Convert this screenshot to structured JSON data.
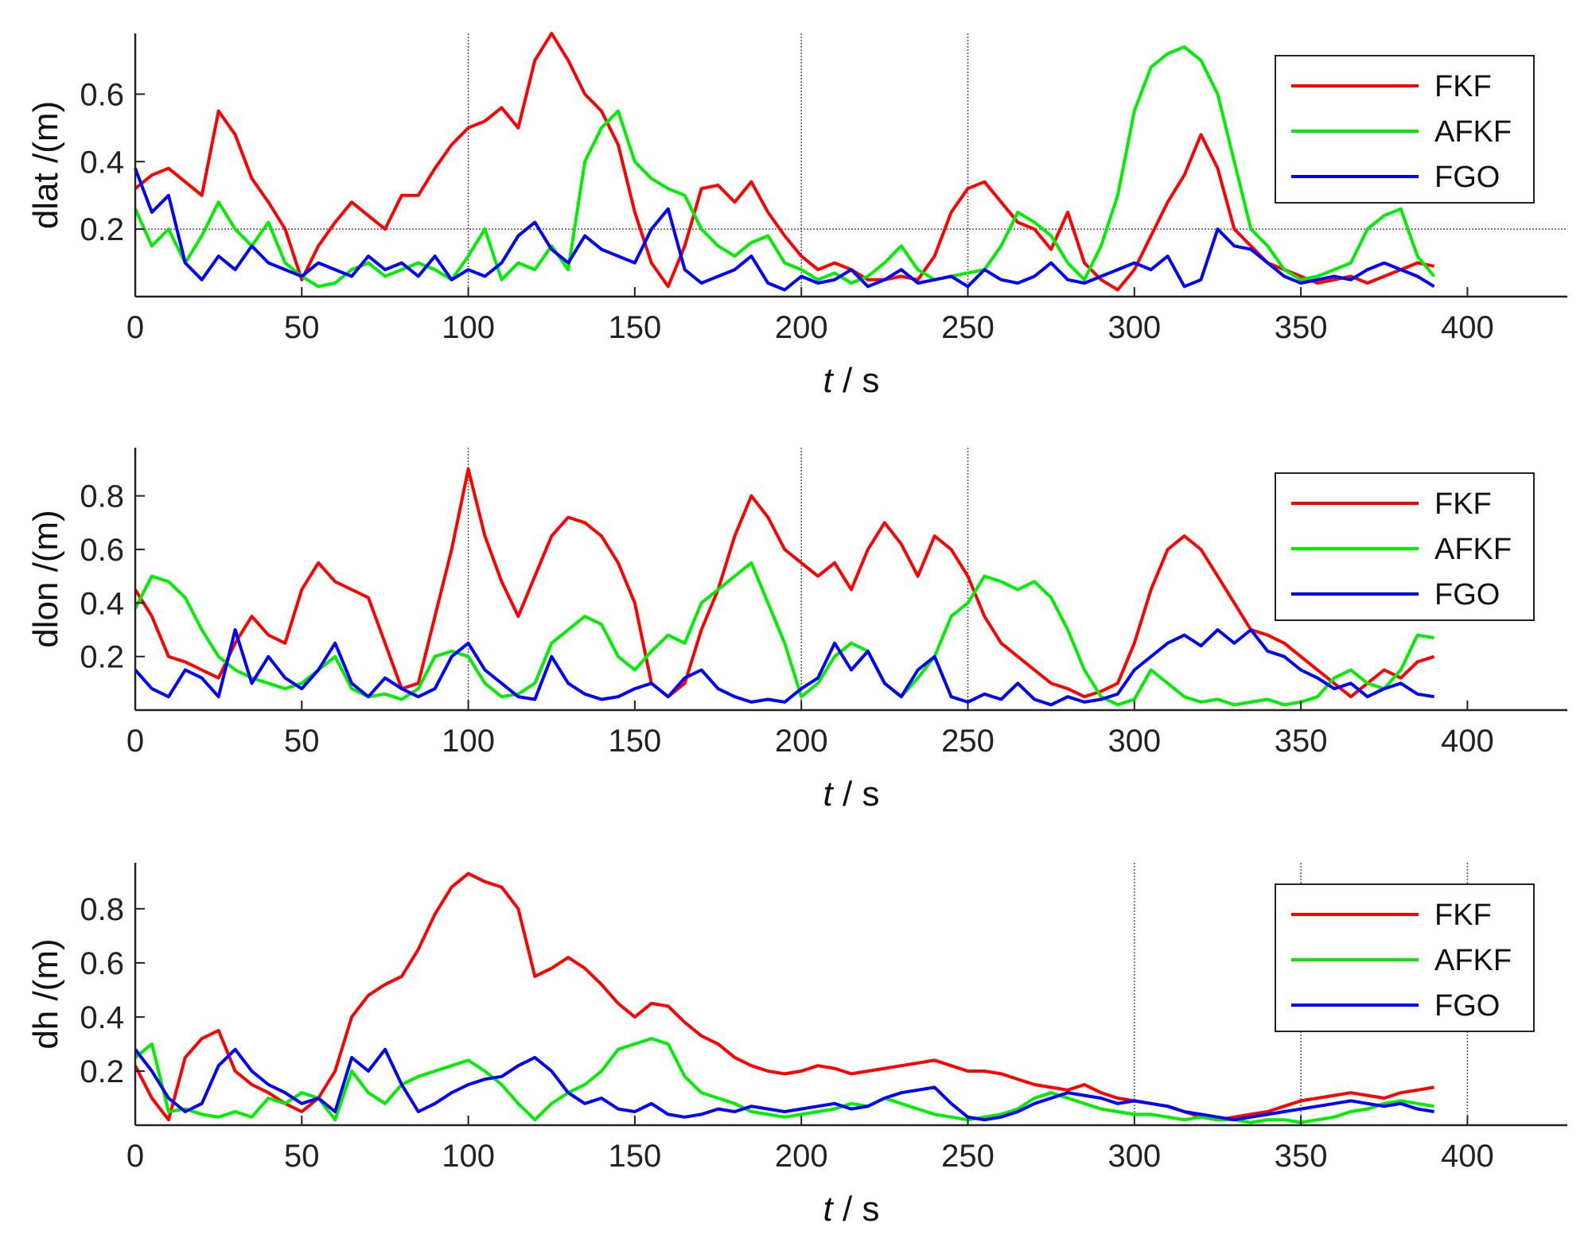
{
  "chart_data": [
    {
      "type": "line",
      "name": "dlat",
      "xlabel_italic": "t",
      "xlabel_unit": "/ s",
      "ylabel": "dlat /(m)",
      "xlim": [
        0,
        430
      ],
      "ylim": [
        0,
        0.78
      ],
      "xticks": [
        "0",
        "50",
        "100",
        "150",
        "200",
        "250",
        "300",
        "350",
        "400"
      ],
      "yticks": [
        "0.2",
        "0.4",
        "0.6"
      ],
      "yticks_values": [
        0.2,
        0.4,
        0.6
      ],
      "vlines": [
        100,
        200,
        250
      ],
      "hline": 0.2,
      "x": [
        0,
        5,
        10,
        15,
        20,
        25,
        30,
        35,
        40,
        45,
        50,
        55,
        60,
        65,
        70,
        75,
        80,
        85,
        90,
        95,
        100,
        105,
        110,
        115,
        120,
        125,
        130,
        135,
        140,
        145,
        150,
        155,
        160,
        165,
        170,
        175,
        180,
        185,
        190,
        195,
        200,
        205,
        210,
        215,
        220,
        225,
        230,
        235,
        240,
        245,
        250,
        255,
        260,
        265,
        270,
        275,
        280,
        285,
        290,
        295,
        300,
        305,
        310,
        315,
        320,
        325,
        330,
        335,
        340,
        345,
        350,
        355,
        360,
        365,
        370,
        375,
        380,
        385,
        390
      ],
      "series": [
        {
          "name": "FKF",
          "color": "#ff0000",
          "values": [
            0.32,
            0.36,
            0.38,
            0.34,
            0.3,
            0.55,
            0.48,
            0.35,
            0.28,
            0.2,
            0.05,
            0.15,
            0.22,
            0.28,
            0.24,
            0.2,
            0.3,
            0.3,
            0.38,
            0.45,
            0.5,
            0.52,
            0.56,
            0.5,
            0.7,
            0.78,
            0.7,
            0.6,
            0.55,
            0.45,
            0.25,
            0.1,
            0.03,
            0.15,
            0.32,
            0.33,
            0.28,
            0.34,
            0.25,
            0.18,
            0.12,
            0.08,
            0.1,
            0.08,
            0.05,
            0.05,
            0.06,
            0.05,
            0.12,
            0.25,
            0.32,
            0.34,
            0.28,
            0.22,
            0.2,
            0.14,
            0.25,
            0.1,
            0.05,
            0.02,
            0.08,
            0.18,
            0.28,
            0.36,
            0.48,
            0.38,
            0.2,
            0.15,
            0.1,
            0.08,
            0.06,
            0.04,
            0.05,
            0.06,
            0.04,
            0.06,
            0.08,
            0.1,
            0.09
          ]
        },
        {
          "name": "AFKF",
          "color": "#00ee00",
          "values": [
            0.26,
            0.15,
            0.2,
            0.1,
            0.18,
            0.28,
            0.2,
            0.15,
            0.22,
            0.1,
            0.06,
            0.03,
            0.04,
            0.08,
            0.1,
            0.06,
            0.08,
            0.1,
            0.08,
            0.05,
            0.12,
            0.2,
            0.05,
            0.1,
            0.08,
            0.15,
            0.08,
            0.4,
            0.5,
            0.55,
            0.4,
            0.35,
            0.32,
            0.3,
            0.2,
            0.15,
            0.12,
            0.16,
            0.18,
            0.1,
            0.08,
            0.05,
            0.07,
            0.04,
            0.06,
            0.1,
            0.15,
            0.08,
            0.05,
            0.06,
            0.07,
            0.08,
            0.15,
            0.25,
            0.22,
            0.18,
            0.1,
            0.05,
            0.15,
            0.3,
            0.55,
            0.68,
            0.72,
            0.74,
            0.7,
            0.6,
            0.4,
            0.2,
            0.15,
            0.08,
            0.05,
            0.06,
            0.08,
            0.1,
            0.2,
            0.24,
            0.26,
            0.12,
            0.06
          ]
        },
        {
          "name": "FGO",
          "color": "#0000ff",
          "values": [
            0.38,
            0.25,
            0.3,
            0.1,
            0.05,
            0.12,
            0.08,
            0.15,
            0.1,
            0.08,
            0.06,
            0.1,
            0.08,
            0.06,
            0.12,
            0.08,
            0.1,
            0.06,
            0.12,
            0.05,
            0.08,
            0.06,
            0.1,
            0.18,
            0.22,
            0.14,
            0.1,
            0.18,
            0.14,
            0.12,
            0.1,
            0.2,
            0.26,
            0.08,
            0.04,
            0.06,
            0.08,
            0.12,
            0.04,
            0.02,
            0.06,
            0.04,
            0.05,
            0.08,
            0.03,
            0.05,
            0.08,
            0.04,
            0.05,
            0.06,
            0.03,
            0.08,
            0.05,
            0.04,
            0.06,
            0.1,
            0.05,
            0.04,
            0.06,
            0.08,
            0.1,
            0.08,
            0.12,
            0.03,
            0.05,
            0.2,
            0.15,
            0.14,
            0.1,
            0.06,
            0.04,
            0.05,
            0.06,
            0.05,
            0.08,
            0.1,
            0.08,
            0.06,
            0.03
          ]
        }
      ]
    },
    {
      "type": "line",
      "name": "dlon",
      "xlabel_italic": "t",
      "xlabel_unit": "/ s",
      "ylabel": "dlon /(m)",
      "xlim": [
        0,
        430
      ],
      "ylim": [
        0,
        0.98
      ],
      "xticks": [
        "0",
        "50",
        "100",
        "150",
        "200",
        "250",
        "300",
        "350",
        "400"
      ],
      "yticks": [
        "0.2",
        "0.4",
        "0.6",
        "0.8"
      ],
      "yticks_values": [
        0.2,
        0.4,
        0.6,
        0.8
      ],
      "vlines": [
        100,
        200,
        250
      ],
      "hline": null,
      "x": [
        0,
        5,
        10,
        15,
        20,
        25,
        30,
        35,
        40,
        45,
        50,
        55,
        60,
        65,
        70,
        75,
        80,
        85,
        90,
        95,
        100,
        105,
        110,
        115,
        120,
        125,
        130,
        135,
        140,
        145,
        150,
        155,
        160,
        165,
        170,
        175,
        180,
        185,
        190,
        195,
        200,
        205,
        210,
        215,
        220,
        225,
        230,
        235,
        240,
        245,
        250,
        255,
        260,
        265,
        270,
        275,
        280,
        285,
        290,
        295,
        300,
        305,
        310,
        315,
        320,
        325,
        330,
        335,
        340,
        345,
        350,
        355,
        360,
        365,
        370,
        375,
        380,
        385,
        390
      ],
      "series": [
        {
          "name": "FKF",
          "color": "#ff0000",
          "values": [
            0.45,
            0.35,
            0.2,
            0.18,
            0.15,
            0.12,
            0.25,
            0.35,
            0.28,
            0.25,
            0.45,
            0.55,
            0.48,
            0.45,
            0.42,
            0.25,
            0.08,
            0.1,
            0.35,
            0.6,
            0.9,
            0.65,
            0.48,
            0.35,
            0.5,
            0.65,
            0.72,
            0.7,
            0.65,
            0.55,
            0.4,
            0.1,
            0.05,
            0.1,
            0.3,
            0.45,
            0.65,
            0.8,
            0.72,
            0.6,
            0.55,
            0.5,
            0.55,
            0.45,
            0.6,
            0.7,
            0.62,
            0.5,
            0.65,
            0.6,
            0.5,
            0.35,
            0.25,
            0.2,
            0.15,
            0.1,
            0.08,
            0.05,
            0.07,
            0.1,
            0.25,
            0.45,
            0.6,
            0.65,
            0.6,
            0.5,
            0.4,
            0.3,
            0.28,
            0.25,
            0.2,
            0.15,
            0.1,
            0.05,
            0.1,
            0.15,
            0.12,
            0.18,
            0.2
          ]
        },
        {
          "name": "AFKF",
          "color": "#00ee00",
          "values": [
            0.38,
            0.5,
            0.48,
            0.42,
            0.3,
            0.2,
            0.15,
            0.12,
            0.1,
            0.08,
            0.1,
            0.15,
            0.2,
            0.08,
            0.05,
            0.06,
            0.04,
            0.08,
            0.2,
            0.22,
            0.2,
            0.1,
            0.05,
            0.06,
            0.1,
            0.25,
            0.3,
            0.35,
            0.32,
            0.2,
            0.15,
            0.22,
            0.28,
            0.25,
            0.4,
            0.45,
            0.5,
            0.55,
            0.4,
            0.25,
            0.05,
            0.1,
            0.2,
            0.25,
            0.22,
            0.1,
            0.05,
            0.12,
            0.2,
            0.35,
            0.4,
            0.5,
            0.48,
            0.45,
            0.48,
            0.42,
            0.3,
            0.15,
            0.05,
            0.02,
            0.04,
            0.15,
            0.1,
            0.05,
            0.03,
            0.04,
            0.02,
            0.03,
            0.04,
            0.02,
            0.03,
            0.05,
            0.12,
            0.15,
            0.1,
            0.08,
            0.15,
            0.28,
            0.27
          ]
        },
        {
          "name": "FGO",
          "color": "#0000ff",
          "values": [
            0.15,
            0.08,
            0.05,
            0.15,
            0.12,
            0.05,
            0.3,
            0.1,
            0.2,
            0.12,
            0.08,
            0.15,
            0.25,
            0.1,
            0.05,
            0.12,
            0.08,
            0.05,
            0.08,
            0.2,
            0.25,
            0.15,
            0.1,
            0.05,
            0.04,
            0.2,
            0.1,
            0.06,
            0.04,
            0.05,
            0.08,
            0.1,
            0.05,
            0.12,
            0.15,
            0.08,
            0.05,
            0.03,
            0.04,
            0.03,
            0.08,
            0.12,
            0.25,
            0.15,
            0.22,
            0.1,
            0.05,
            0.15,
            0.2,
            0.05,
            0.03,
            0.06,
            0.04,
            0.1,
            0.04,
            0.02,
            0.05,
            0.03,
            0.04,
            0.06,
            0.15,
            0.2,
            0.25,
            0.28,
            0.24,
            0.3,
            0.25,
            0.3,
            0.22,
            0.2,
            0.15,
            0.12,
            0.08,
            0.1,
            0.05,
            0.08,
            0.1,
            0.06,
            0.05
          ]
        }
      ]
    },
    {
      "type": "line",
      "name": "dh",
      "xlabel_italic": "t",
      "xlabel_unit": "/ s",
      "ylabel": "dh /(m)",
      "xlim": [
        0,
        430
      ],
      "ylim": [
        0,
        0.97
      ],
      "xticks": [
        "0",
        "50",
        "100",
        "150",
        "200",
        "250",
        "300",
        "350",
        "400"
      ],
      "yticks": [
        "0.2",
        "0.4",
        "0.6",
        "0.8"
      ],
      "yticks_values": [
        0.2,
        0.4,
        0.6,
        0.8
      ],
      "vlines": [
        300,
        350,
        400
      ],
      "hline": null,
      "x": [
        0,
        5,
        10,
        15,
        20,
        25,
        30,
        35,
        40,
        45,
        50,
        55,
        60,
        65,
        70,
        75,
        80,
        85,
        90,
        95,
        100,
        105,
        110,
        115,
        120,
        125,
        130,
        135,
        140,
        145,
        150,
        155,
        160,
        165,
        170,
        175,
        180,
        185,
        190,
        195,
        200,
        205,
        210,
        215,
        220,
        225,
        230,
        235,
        240,
        245,
        250,
        255,
        260,
        265,
        270,
        275,
        280,
        285,
        290,
        295,
        300,
        305,
        310,
        315,
        320,
        325,
        330,
        335,
        340,
        345,
        350,
        355,
        360,
        365,
        370,
        375,
        380,
        385,
        390
      ],
      "series": [
        {
          "name": "FKF",
          "color": "#ff0000",
          "values": [
            0.22,
            0.1,
            0.02,
            0.25,
            0.32,
            0.35,
            0.2,
            0.15,
            0.12,
            0.08,
            0.05,
            0.1,
            0.2,
            0.4,
            0.48,
            0.52,
            0.55,
            0.65,
            0.78,
            0.88,
            0.93,
            0.9,
            0.88,
            0.8,
            0.55,
            0.58,
            0.62,
            0.58,
            0.52,
            0.45,
            0.4,
            0.45,
            0.44,
            0.38,
            0.33,
            0.3,
            0.25,
            0.22,
            0.2,
            0.19,
            0.2,
            0.22,
            0.21,
            0.19,
            0.2,
            0.21,
            0.22,
            0.23,
            0.24,
            0.22,
            0.2,
            0.2,
            0.19,
            0.17,
            0.15,
            0.14,
            0.13,
            0.15,
            0.12,
            0.1,
            0.09,
            0.08,
            0.07,
            0.05,
            0.03,
            0.02,
            0.03,
            0.04,
            0.05,
            0.07,
            0.09,
            0.1,
            0.11,
            0.12,
            0.11,
            0.1,
            0.12,
            0.13,
            0.14
          ]
        },
        {
          "name": "AFKF",
          "color": "#00ee00",
          "values": [
            0.25,
            0.3,
            0.05,
            0.06,
            0.04,
            0.03,
            0.05,
            0.03,
            0.1,
            0.08,
            0.12,
            0.1,
            0.02,
            0.2,
            0.12,
            0.08,
            0.15,
            0.18,
            0.2,
            0.22,
            0.24,
            0.2,
            0.15,
            0.08,
            0.02,
            0.08,
            0.12,
            0.15,
            0.2,
            0.28,
            0.3,
            0.32,
            0.3,
            0.18,
            0.12,
            0.1,
            0.08,
            0.05,
            0.04,
            0.03,
            0.04,
            0.05,
            0.06,
            0.08,
            0.07,
            0.1,
            0.08,
            0.06,
            0.04,
            0.03,
            0.02,
            0.03,
            0.04,
            0.06,
            0.1,
            0.12,
            0.1,
            0.08,
            0.06,
            0.05,
            0.04,
            0.04,
            0.03,
            0.02,
            0.03,
            0.02,
            0.02,
            0.01,
            0.02,
            0.02,
            0.01,
            0.02,
            0.03,
            0.05,
            0.06,
            0.08,
            0.09,
            0.08,
            0.07
          ]
        },
        {
          "name": "FGO",
          "color": "#0000ff",
          "values": [
            0.28,
            0.2,
            0.1,
            0.05,
            0.08,
            0.22,
            0.28,
            0.2,
            0.15,
            0.12,
            0.08,
            0.1,
            0.05,
            0.25,
            0.2,
            0.28,
            0.15,
            0.05,
            0.08,
            0.12,
            0.15,
            0.17,
            0.18,
            0.22,
            0.25,
            0.2,
            0.12,
            0.08,
            0.1,
            0.06,
            0.05,
            0.08,
            0.04,
            0.03,
            0.04,
            0.06,
            0.05,
            0.07,
            0.06,
            0.05,
            0.06,
            0.07,
            0.08,
            0.06,
            0.07,
            0.1,
            0.12,
            0.13,
            0.14,
            0.08,
            0.03,
            0.02,
            0.03,
            0.05,
            0.08,
            0.1,
            0.12,
            0.11,
            0.1,
            0.08,
            0.09,
            0.08,
            0.07,
            0.05,
            0.04,
            0.03,
            0.02,
            0.03,
            0.04,
            0.05,
            0.06,
            0.07,
            0.08,
            0.09,
            0.08,
            0.07,
            0.08,
            0.06,
            0.05
          ]
        }
      ]
    }
  ]
}
